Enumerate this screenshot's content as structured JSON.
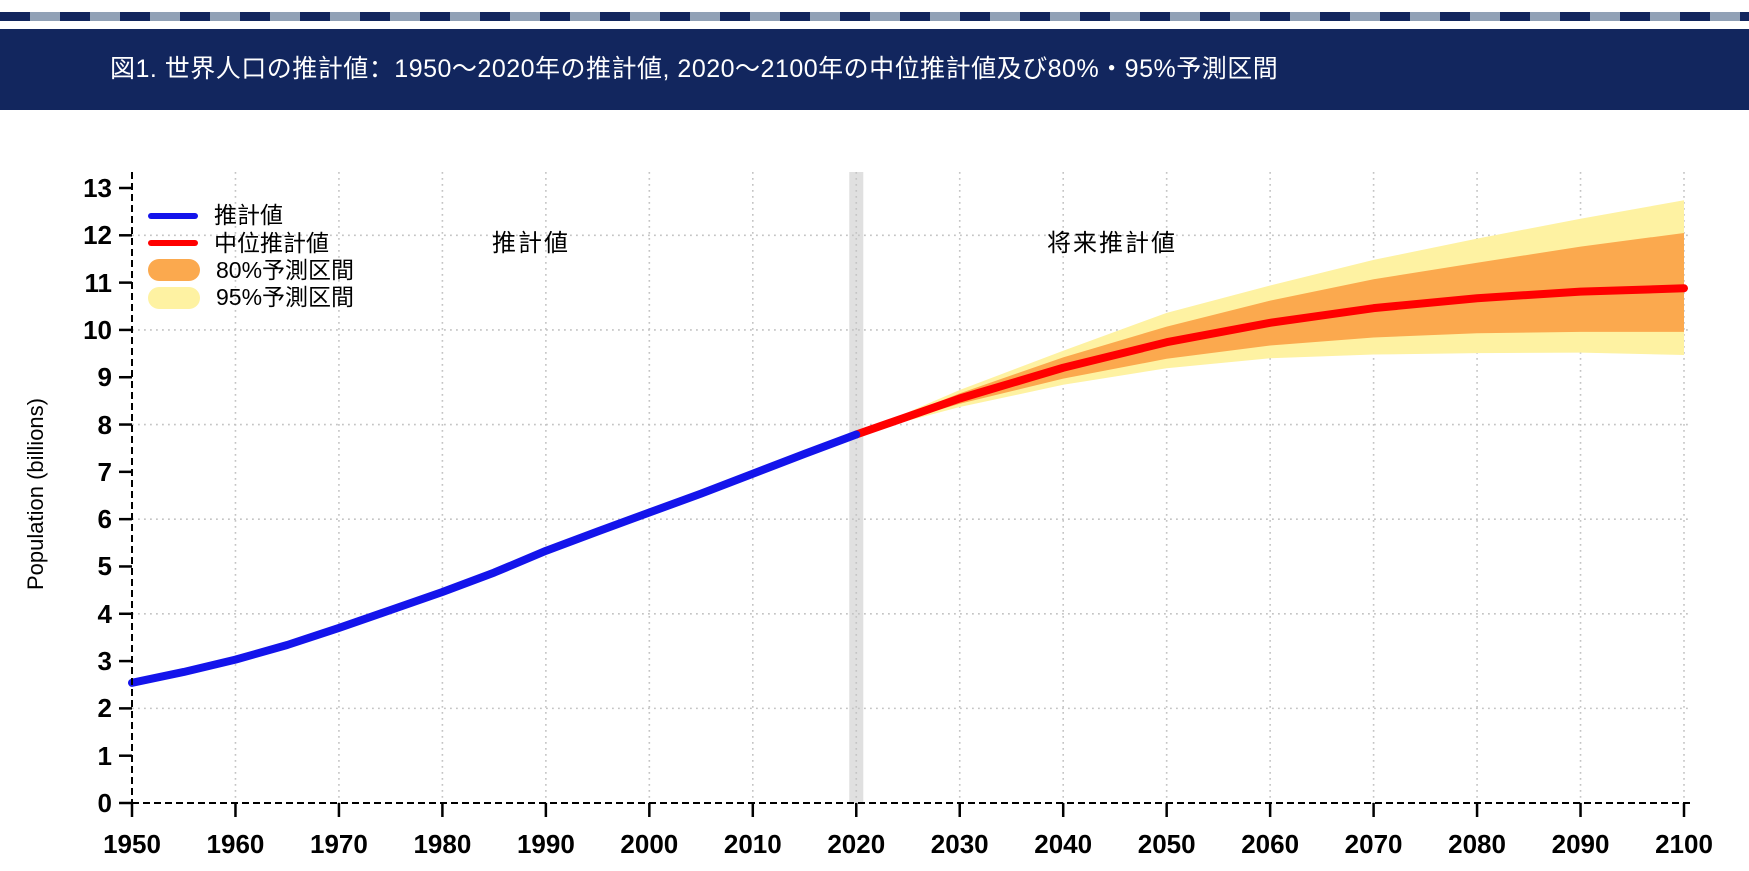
{
  "banner": {
    "title": "図1. 世界人口の推計値：1950～2020年の推計値, 2020～2100年の中位推計値及び80%・95%予測区間"
  },
  "colors": {
    "header_navy": "#12265E",
    "stripe_gray": "#91A1B6",
    "estimate_blue": "#1414EB",
    "median_red": "#FF0000",
    "pi80_orange": "#FBA94E",
    "pi95_yellow": "#FEF2A2",
    "grid_gray": "#C4C4C4",
    "now_band_gray": "#E0E0E0",
    "axis_black": "#000000"
  },
  "legend": {
    "items": [
      {
        "label": "推計値",
        "swatch": "line",
        "color": "#1414EB"
      },
      {
        "label": "中位推計値",
        "swatch": "line",
        "color": "#FF0000"
      },
      {
        "label": "80%予測区間",
        "swatch": "band",
        "color": "#FBA94E"
      },
      {
        "label": "95%予測区間",
        "swatch": "band",
        "color": "#FEF2A2"
      }
    ]
  },
  "annotations": {
    "estimates_label": "推計値",
    "projections_label": "将来推計値"
  },
  "chart_data": {
    "type": "line",
    "title": "図1. 世界人口の推計値：1950～2020年の推計値, 2020～2100年の中位推計値及び80%・95%予測区間",
    "xlabel": "",
    "ylabel": "Population (billions)",
    "xlim": [
      1950,
      2100
    ],
    "ylim": [
      0,
      13
    ],
    "x_ticks": [
      1950,
      1960,
      1970,
      1980,
      1990,
      2000,
      2010,
      2020,
      2030,
      2040,
      2050,
      2060,
      2070,
      2080,
      2090,
      2100
    ],
    "y_ticks": [
      0,
      1,
      2,
      3,
      4,
      5,
      6,
      7,
      8,
      9,
      10,
      11,
      12,
      13
    ],
    "grid": {
      "style": "dotted",
      "x_grid_years": [
        1960,
        1970,
        1980,
        1990,
        2000,
        2010,
        2020,
        2030,
        2040,
        2050,
        2060,
        2070,
        2080,
        2090,
        2100
      ],
      "y_grid_values": [
        2,
        4,
        6,
        8,
        10,
        12
      ]
    },
    "now_marker_year": 2020,
    "legend_position": "top-left",
    "series": [
      {
        "name": "95%予測区間",
        "type": "band",
        "color": "#FEF2A2",
        "x": [
          2020,
          2030,
          2040,
          2050,
          2060,
          2070,
          2080,
          2090,
          2100
        ],
        "upper": [
          7.79,
          8.73,
          9.56,
          10.36,
          10.94,
          11.48,
          11.93,
          12.35,
          12.74
        ],
        "lower": [
          7.79,
          8.37,
          8.84,
          9.19,
          9.4,
          9.48,
          9.51,
          9.52,
          9.47
        ]
      },
      {
        "name": "80%予測区間",
        "type": "band",
        "color": "#FBA94E",
        "x": [
          2020,
          2030,
          2040,
          2050,
          2060,
          2070,
          2080,
          2090,
          2100
        ],
        "upper": [
          7.79,
          8.66,
          9.42,
          10.07,
          10.62,
          11.07,
          11.42,
          11.76,
          12.05
        ],
        "lower": [
          7.79,
          8.44,
          8.97,
          9.39,
          9.67,
          9.84,
          9.93,
          9.96,
          9.96
        ]
      },
      {
        "name": "中位推計値",
        "type": "line",
        "color": "#FF0000",
        "x": [
          2020,
          2030,
          2040,
          2050,
          2060,
          2070,
          2080,
          2090,
          2100
        ],
        "values": [
          7.79,
          8.55,
          9.2,
          9.74,
          10.15,
          10.46,
          10.67,
          10.81,
          10.88
        ]
      },
      {
        "name": "推計値",
        "type": "line",
        "color": "#1414EB",
        "x": [
          1950,
          1955,
          1960,
          1965,
          1970,
          1975,
          1980,
          1985,
          1990,
          1995,
          2000,
          2005,
          2010,
          2015,
          2020
        ],
        "values": [
          2.54,
          2.77,
          3.03,
          3.34,
          3.7,
          4.08,
          4.46,
          4.87,
          5.33,
          5.74,
          6.14,
          6.54,
          6.96,
          7.38,
          7.79
        ]
      }
    ]
  }
}
